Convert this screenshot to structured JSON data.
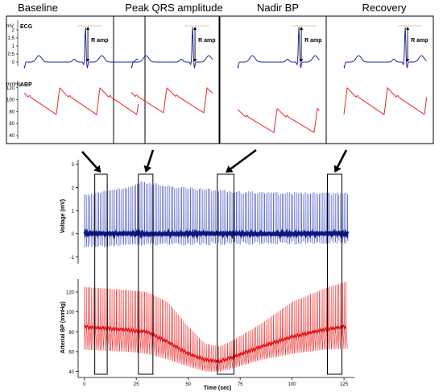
{
  "chart_data": [
    {
      "type": "line",
      "panel": "top",
      "titles": [
        "Baseline",
        "Peak QRS amplitude",
        "Nadir BP",
        "Recovery"
      ],
      "ecg_label": "ECG",
      "ecg_unit": "mV",
      "ecg_ticks": [
        0,
        0.5,
        1,
        1.5,
        2
      ],
      "ramp_label": "R amp",
      "abp_label": "ABP",
      "abp_unit": "mmHg",
      "abp_ticks": [
        40,
        60,
        80,
        100,
        120
      ],
      "abp_series": [
        {
          "systolic": 120,
          "diastolic": 75
        },
        {
          "systolic": 120,
          "diastolic": 78
        },
        {
          "systolic": 85,
          "diastolic": 45
        },
        {
          "systolic": 120,
          "diastolic": 75
        }
      ]
    },
    {
      "type": "line",
      "panel": "bottom",
      "xlabel": "Time (sec)",
      "xticks": [
        0,
        25,
        50,
        75,
        100,
        125
      ],
      "xlim": [
        -3,
        130
      ],
      "ecg": {
        "ylabel": "Voltage (mV)",
        "yticks": [
          -1,
          0,
          1,
          2,
          3
        ],
        "ylim": [
          -1.3,
          3.2
        ],
        "baseline": 0,
        "peaks": [
          [
            0,
            1.7
          ],
          [
            20,
            2.05
          ],
          [
            28,
            2.3
          ],
          [
            45,
            2.05
          ],
          [
            75,
            1.85
          ],
          [
            100,
            1.8
          ],
          [
            128,
            1.8
          ]
        ],
        "troughs": [
          [
            0,
            -0.6
          ],
          [
            60,
            -0.5
          ],
          [
            128,
            -0.45
          ]
        ]
      },
      "bp": {
        "ylabel": "Arterial BP (mmHg)",
        "yticks": [
          40,
          60,
          80,
          100,
          120
        ],
        "ylim": [
          34,
          133
        ],
        "systolic": [
          [
            0,
            125
          ],
          [
            20,
            122
          ],
          [
            30,
            120
          ],
          [
            40,
            110
          ],
          [
            50,
            85
          ],
          [
            58,
            68
          ],
          [
            65,
            65
          ],
          [
            72,
            72
          ],
          [
            85,
            88
          ],
          [
            100,
            110
          ],
          [
            115,
            123
          ],
          [
            125,
            130
          ]
        ],
        "diastolic": [
          [
            0,
            62
          ],
          [
            20,
            60
          ],
          [
            30,
            58
          ],
          [
            40,
            52
          ],
          [
            50,
            45
          ],
          [
            58,
            40
          ],
          [
            65,
            40
          ],
          [
            72,
            44
          ],
          [
            85,
            52
          ],
          [
            100,
            58
          ],
          [
            115,
            62
          ],
          [
            125,
            63
          ]
        ],
        "mean": [
          [
            0,
            85
          ],
          [
            20,
            82
          ],
          [
            30,
            80
          ],
          [
            40,
            70
          ],
          [
            50,
            58
          ],
          [
            58,
            52
          ],
          [
            65,
            50
          ],
          [
            72,
            55
          ],
          [
            85,
            65
          ],
          [
            100,
            75
          ],
          [
            115,
            82
          ],
          [
            125,
            85
          ]
        ]
      },
      "windows": [
        [
          5,
          11
        ],
        [
          26,
          33
        ],
        [
          64,
          72
        ],
        [
          117,
          124
        ]
      ]
    }
  ]
}
